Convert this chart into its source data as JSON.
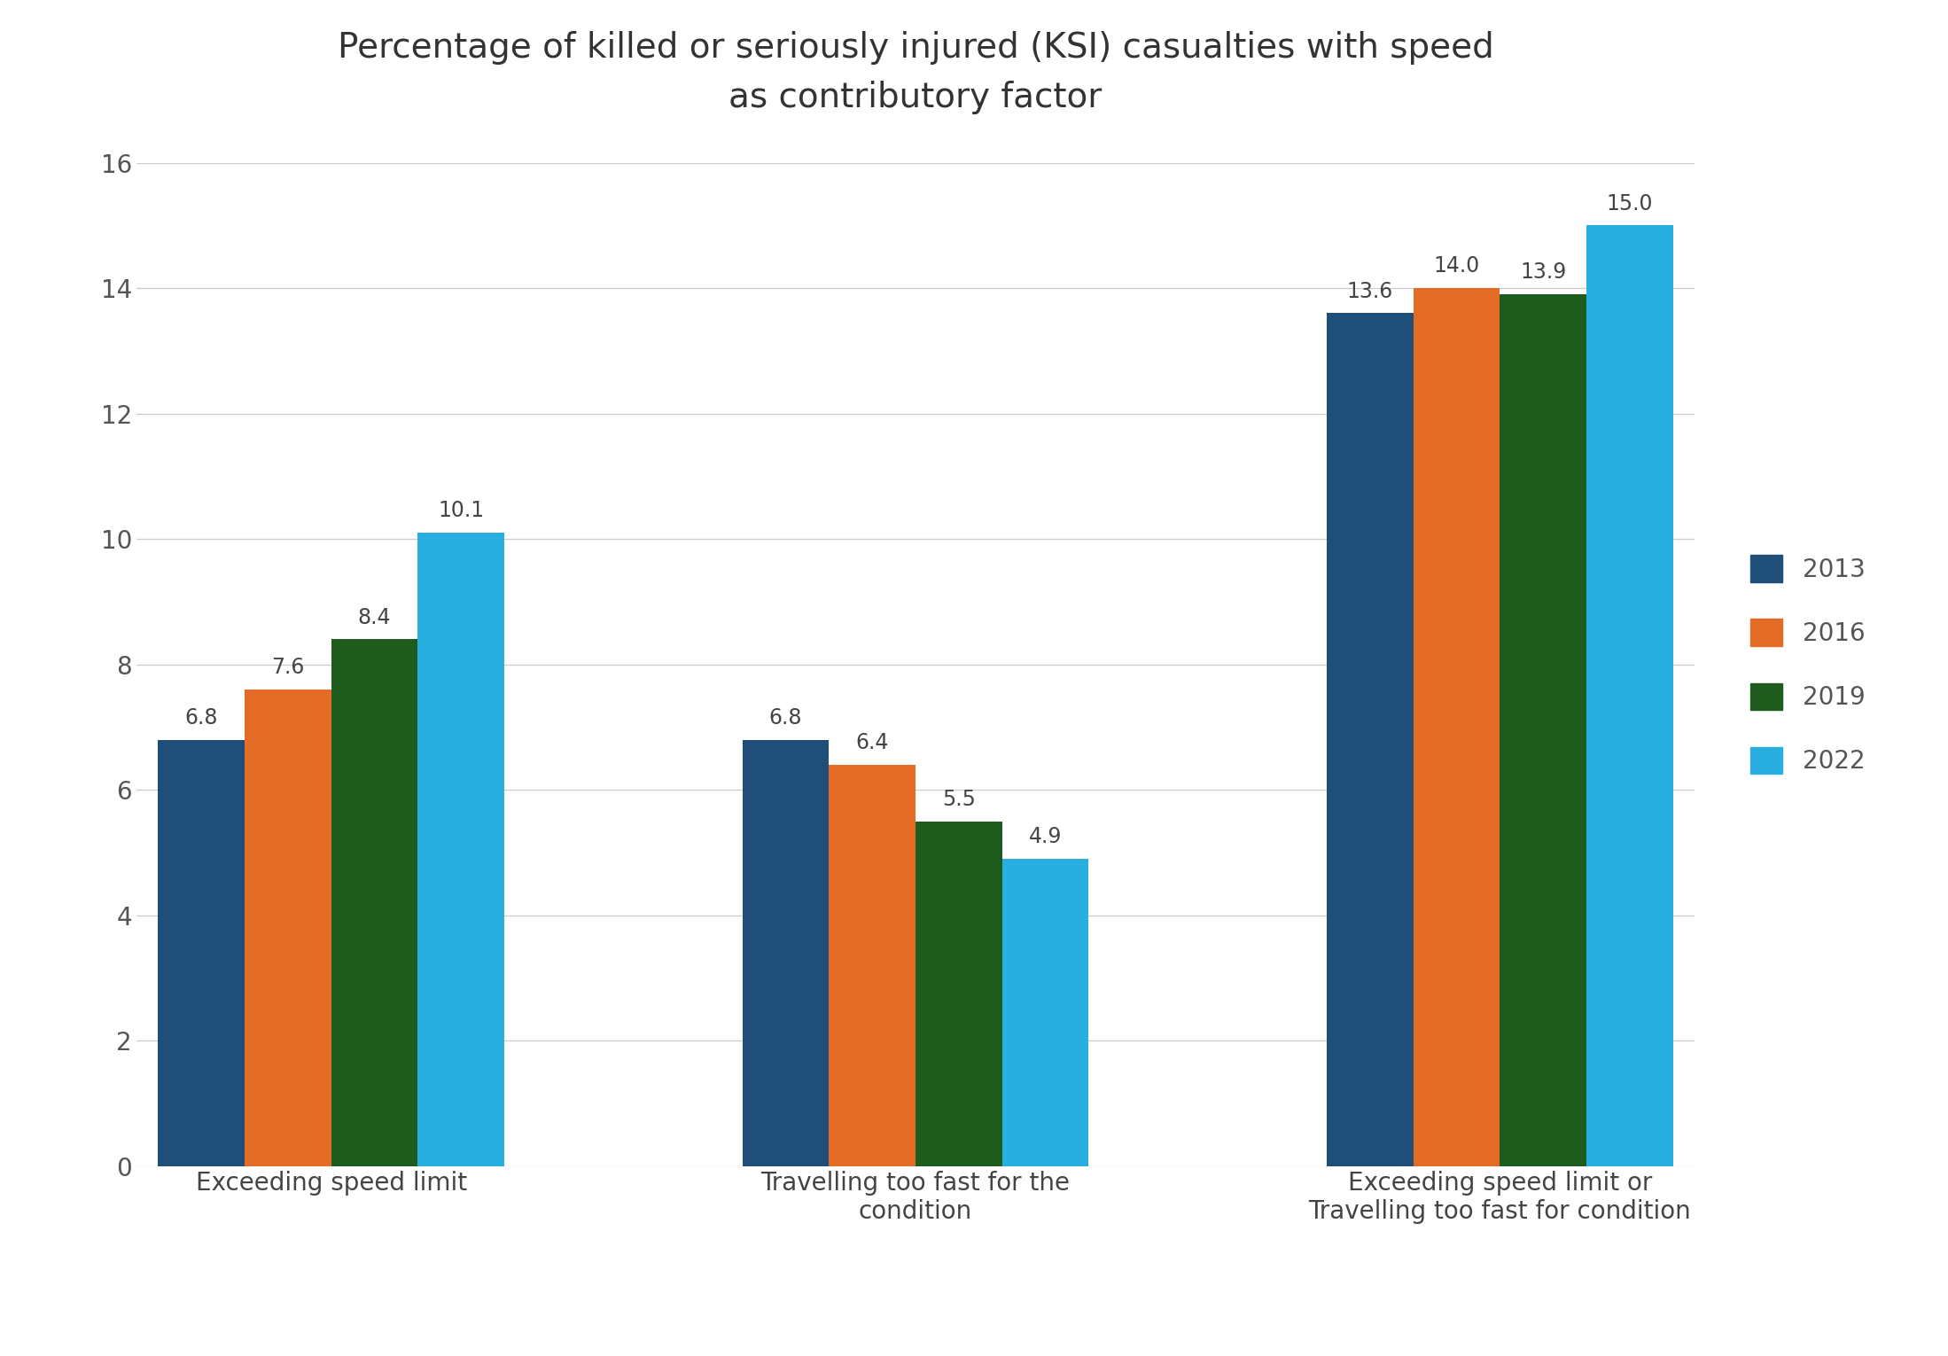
{
  "title": "Percentage of killed or seriously injured (KSI) casualties with speed\nas contributory factor",
  "categories": [
    "Exceeding speed limit",
    "Travelling too fast for the\ncondition",
    "Exceeding speed limit or\nTravelling too fast for condition"
  ],
  "series": {
    "2013": [
      6.8,
      6.8,
      13.6
    ],
    "2016": [
      7.6,
      6.4,
      14.0
    ],
    "2019": [
      8.4,
      5.5,
      13.9
    ],
    "2022": [
      10.1,
      4.9,
      15.0
    ]
  },
  "colors": {
    "2013": "#1f4e79",
    "2016": "#e36b26",
    "2019": "#1e5c1e",
    "2022": "#29aee0"
  },
  "ylim": [
    0,
    16
  ],
  "yticks": [
    0,
    2,
    4,
    6,
    8,
    10,
    12,
    14,
    16
  ],
  "bar_width": 0.2,
  "background_color": "#ffffff",
  "title_fontsize": 28,
  "tick_fontsize": 20,
  "legend_fontsize": 20,
  "value_fontsize": 17
}
